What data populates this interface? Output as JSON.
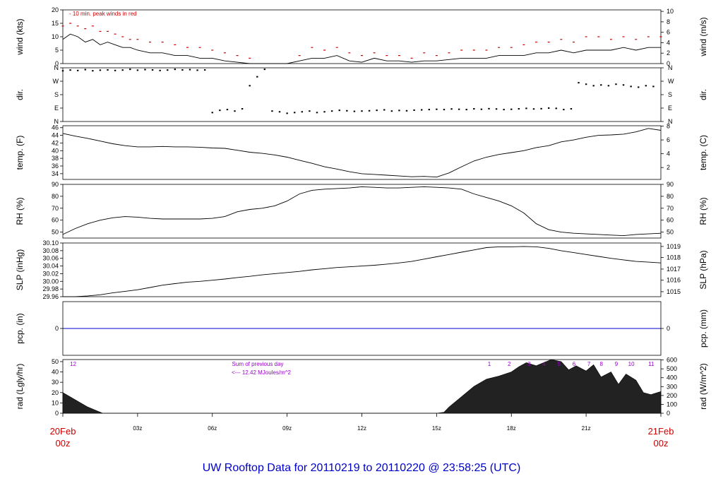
{
  "footer_title": "UW Rooftop Data for 20110219  to  20110220 @ 23:58:25  (UTC)",
  "colors": {
    "frame": "#000000",
    "title": "#0000cc",
    "date": "#cc0000",
    "peak": "#cc0000",
    "pcp_line": "#0000cc",
    "annot": "#9900cc"
  },
  "chart_data": [
    {
      "type": "line",
      "id": "wind",
      "ylabel_left": "wind (kts)",
      "ylabel_right": "wind (m/s)",
      "ylim": [
        0,
        20
      ],
      "yticks_left": [
        0,
        5,
        10,
        15,
        20
      ],
      "right_ticks": [
        {
          "label": "0",
          "v": 0
        },
        {
          "label": "2",
          "v": 3.89
        },
        {
          "label": "4",
          "v": 7.78
        },
        {
          "label": "6",
          "v": 11.66
        },
        {
          "label": "8",
          "v": 15.55
        },
        {
          "label": "10",
          "v": 19.44
        }
      ],
      "annotation": "- 10 min. peak winds in red",
      "x_hours": [
        0,
        0.3,
        0.6,
        0.9,
        1.2,
        1.5,
        1.8,
        2.1,
        2.4,
        2.7,
        3.0,
        3.5,
        4.0,
        4.5,
        5.0,
        5.5,
        6.0,
        6.5,
        7.0,
        7.5,
        8.0,
        8.5,
        9.0,
        9.5,
        10.0,
        10.5,
        11.0,
        11.5,
        12.0,
        12.5,
        13.0,
        13.5,
        14.0,
        14.5,
        15.0,
        15.5,
        16.0,
        16.5,
        17.0,
        17.5,
        18.0,
        18.5,
        19.0,
        19.5,
        20.0,
        20.5,
        21.0,
        21.5,
        22.0,
        22.5,
        23.0,
        23.5,
        24.0
      ],
      "values": [
        9,
        11,
        10,
        8,
        9,
        7,
        8,
        7,
        6,
        6,
        5,
        4,
        4,
        3,
        3,
        2,
        2,
        1,
        0.5,
        0,
        0,
        0,
        0,
        1,
        2,
        2,
        3,
        1,
        0.5,
        2,
        1,
        1,
        0.5,
        1,
        1,
        1.5,
        2,
        2,
        2,
        3,
        3,
        3,
        4,
        4,
        5,
        4,
        5,
        5,
        5,
        6,
        5,
        6,
        6
      ],
      "peaks": [
        14,
        15,
        14,
        13,
        14,
        12,
        12,
        11,
        10,
        9,
        9,
        8,
        8,
        7,
        6,
        6,
        5,
        4,
        3,
        2,
        0,
        0,
        0,
        3,
        6,
        5,
        6,
        4,
        3,
        4,
        3,
        3,
        2,
        4,
        3,
        4,
        5,
        5,
        5,
        6,
        6,
        7,
        8,
        8,
        9,
        8,
        10,
        10,
        9,
        10,
        9,
        10,
        10
      ]
    },
    {
      "type": "scatter",
      "id": "dir",
      "ylabel_left": "dir.",
      "ylabel_right": "dir.",
      "ylim": [
        0,
        360
      ],
      "tick_labels": [
        "N",
        "E",
        "S",
        "W",
        "N"
      ],
      "tick_values": [
        0,
        90,
        180,
        270,
        360
      ],
      "x_hours": [
        0,
        0.3,
        0.6,
        0.9,
        1.2,
        1.5,
        1.8,
        2.1,
        2.4,
        2.7,
        3.0,
        3.3,
        3.6,
        3.9,
        4.2,
        4.5,
        4.8,
        5.1,
        5.4,
        5.7,
        6.0,
        6.3,
        6.6,
        6.9,
        7.2,
        7.5,
        7.8,
        8.1,
        8.4,
        8.7,
        9.0,
        9.3,
        9.6,
        9.9,
        10.2,
        10.5,
        10.8,
        11.1,
        11.4,
        11.7,
        12.0,
        12.3,
        12.6,
        12.9,
        13.2,
        13.5,
        13.8,
        14.1,
        14.4,
        14.7,
        15.0,
        15.3,
        15.6,
        15.9,
        16.2,
        16.5,
        16.8,
        17.1,
        17.4,
        17.7,
        18.0,
        18.3,
        18.6,
        18.9,
        19.2,
        19.5,
        19.8,
        20.1,
        20.4,
        20.7,
        21.0,
        21.3,
        21.6,
        21.9,
        22.2,
        22.5,
        22.8,
        23.1,
        23.4,
        23.7
      ],
      "values": [
        340,
        345,
        342,
        348,
        340,
        344,
        346,
        342,
        345,
        350,
        344,
        348,
        346,
        342,
        345,
        350,
        346,
        348,
        344,
        346,
        60,
        75,
        80,
        70,
        85,
        240,
        300,
        350,
        70,
        65,
        55,
        60,
        65,
        70,
        60,
        65,
        70,
        75,
        72,
        68,
        70,
        72,
        75,
        78,
        70,
        74,
        72,
        76,
        78,
        80,
        82,
        80,
        84,
        82,
        80,
        85,
        82,
        86,
        84,
        80,
        82,
        85,
        88,
        84,
        86,
        90,
        88,
        80,
        85,
        260,
        250,
        240,
        245,
        240,
        250,
        245,
        235,
        230,
        240,
        235
      ]
    },
    {
      "type": "line",
      "id": "temp",
      "ylabel_left": "temp. (F)",
      "ylabel_right": "temp. (C)",
      "ylim": [
        32.5,
        46.5
      ],
      "yticks_left": [
        34,
        36,
        38,
        40,
        42,
        44,
        46
      ],
      "right_ticks": [
        {
          "label": "2",
          "v": 35.6
        },
        {
          "label": "4",
          "v": 39.2
        },
        {
          "label": "6",
          "v": 42.8
        },
        {
          "label": "8",
          "v": 46.4
        }
      ],
      "x_hours": [
        0,
        0.5,
        1.0,
        1.5,
        2.0,
        2.5,
        3.0,
        3.5,
        4.0,
        4.5,
        5.0,
        5.5,
        6.0,
        6.5,
        7.0,
        7.5,
        8.0,
        8.5,
        9.0,
        9.5,
        10.0,
        10.5,
        11.0,
        11.5,
        12.0,
        12.5,
        13.0,
        13.5,
        14.0,
        14.5,
        15.0,
        15.5,
        16.0,
        16.5,
        17.0,
        17.5,
        18.0,
        18.5,
        19.0,
        19.5,
        20.0,
        20.5,
        21.0,
        21.5,
        22.0,
        22.5,
        23.0,
        23.5,
        24.0
      ],
      "values": [
        44.5,
        43.8,
        43.2,
        42.5,
        41.8,
        41.3,
        41.0,
        41.0,
        41.1,
        41.0,
        41.0,
        40.9,
        40.7,
        40.6,
        40.1,
        39.6,
        39.3,
        38.9,
        38.3,
        37.5,
        36.7,
        35.8,
        35.2,
        34.5,
        34.0,
        33.8,
        33.6,
        33.4,
        33.2,
        33.3,
        33.1,
        34.2,
        35.8,
        37.3,
        38.3,
        39.0,
        39.5,
        40.0,
        40.8,
        41.3,
        42.3,
        42.8,
        43.5,
        44.0,
        44.1,
        44.3,
        44.9,
        45.8,
        45.3
      ]
    },
    {
      "type": "line",
      "id": "rh",
      "ylabel_left": "RH (%)",
      "ylabel_right": "RH (%)",
      "ylim": [
        45,
        90
      ],
      "yticks_left": [
        50,
        60,
        70,
        80,
        90
      ],
      "right_ticks": [
        {
          "label": "50",
          "v": 50
        },
        {
          "label": "60",
          "v": 60
        },
        {
          "label": "70",
          "v": 70
        },
        {
          "label": "80",
          "v": 80
        },
        {
          "label": "90",
          "v": 90
        }
      ],
      "x_hours": [
        0,
        0.5,
        1.0,
        1.5,
        2.0,
        2.5,
        3.0,
        3.5,
        4.0,
        4.5,
        5.0,
        5.5,
        6.0,
        6.5,
        7.0,
        7.5,
        8.0,
        8.5,
        9.0,
        9.5,
        10.0,
        10.5,
        11.0,
        11.5,
        12.0,
        12.5,
        13.0,
        13.5,
        14.0,
        14.5,
        15.0,
        15.5,
        16.0,
        16.5,
        17.0,
        17.5,
        18.0,
        18.5,
        19.0,
        19.5,
        20.0,
        20.5,
        21.0,
        21.5,
        22.0,
        22.5,
        23.0,
        23.5,
        24.0
      ],
      "values": [
        48,
        53,
        57,
        60,
        62,
        63,
        62.5,
        61.5,
        61,
        61,
        61,
        61,
        61.5,
        63,
        67,
        69,
        70,
        72,
        76,
        82,
        85,
        86,
        86.5,
        87,
        88,
        87.5,
        87,
        87,
        87.5,
        88,
        87.5,
        87,
        86,
        82,
        79,
        76,
        72,
        66,
        57,
        52,
        50,
        49,
        48.5,
        48,
        47.5,
        47,
        48,
        48.5,
        49
      ]
    },
    {
      "type": "line",
      "id": "slp",
      "ylabel_left": "SLP (inHg)",
      "ylabel_right": "SLP (hPa)",
      "ylim": [
        29.96,
        30.1
      ],
      "yticks_left": [
        29.96,
        29.98,
        30.0,
        30.02,
        30.04,
        30.06,
        30.08,
        30.1
      ],
      "ytick_labels_left": [
        "29.96",
        "29.98",
        "30.00",
        "30.02",
        "30.04",
        "30.06",
        "30.08",
        "30.10"
      ],
      "right_ticks": [
        {
          "label": "1015",
          "v": 29.973
        },
        {
          "label": "1016",
          "v": 30.003
        },
        {
          "label": "1017",
          "v": 30.032
        },
        {
          "label": "1018",
          "v": 30.062
        },
        {
          "label": "1019",
          "v": 30.091
        }
      ],
      "x_hours": [
        0,
        0.5,
        1.0,
        1.5,
        2.0,
        2.5,
        3.0,
        3.5,
        4.0,
        4.5,
        5.0,
        5.5,
        6.0,
        6.5,
        7.0,
        7.5,
        8.0,
        8.5,
        9.0,
        9.5,
        10.0,
        10.5,
        11.0,
        11.5,
        12.0,
        12.5,
        13.0,
        13.5,
        14.0,
        14.5,
        15.0,
        15.5,
        16.0,
        16.5,
        17.0,
        17.5,
        18.0,
        18.5,
        19.0,
        19.5,
        20.0,
        20.5,
        21.0,
        21.5,
        22.0,
        22.5,
        23.0,
        23.5,
        24.0
      ],
      "values": [
        29.96,
        29.96,
        29.962,
        29.965,
        29.97,
        29.974,
        29.978,
        29.984,
        29.99,
        29.994,
        29.998,
        30.0,
        30.003,
        30.006,
        30.01,
        30.013,
        30.017,
        30.02,
        30.023,
        30.026,
        30.03,
        30.033,
        30.036,
        30.038,
        30.04,
        30.042,
        30.045,
        30.048,
        30.052,
        30.058,
        30.064,
        30.07,
        30.076,
        30.082,
        30.088,
        30.09,
        30.09,
        30.091,
        30.09,
        30.086,
        30.08,
        30.075,
        30.07,
        30.065,
        30.06,
        30.056,
        30.052,
        30.05,
        30.048
      ]
    },
    {
      "type": "line",
      "id": "pcp",
      "ylabel_left": "pcp. (in)",
      "ylabel_right": "pcp. (mm)",
      "ylim": [
        -1,
        1
      ],
      "yticks_left": [
        0
      ],
      "right_ticks": [
        {
          "label": "0",
          "v": 0
        }
      ],
      "x_hours": [
        0,
        24
      ],
      "values": [
        0,
        0
      ]
    },
    {
      "type": "area",
      "id": "rad",
      "ylabel_left": "rad (Lgly/hr)",
      "ylabel_right": "rad (W/m^2)",
      "ylim": [
        0,
        52
      ],
      "yticks_left": [
        0,
        10,
        20,
        30,
        40,
        50
      ],
      "right_ticks": [
        {
          "label": "0",
          "v": 0
        },
        {
          "label": "100",
          "v": 8.6
        },
        {
          "label": "200",
          "v": 17.2
        },
        {
          "label": "300",
          "v": 25.8
        },
        {
          "label": "400",
          "v": 34.4
        },
        {
          "label": "500",
          "v": 43.0
        },
        {
          "label": "600",
          "v": 51.6
        }
      ],
      "annotations": [
        "Sum of previous day",
        "<--- 12.42 MJoules/m^2"
      ],
      "hour_markers": [
        {
          "label": "12",
          "hour": 0.3
        },
        {
          "label": "1",
          "hour": 17.0
        },
        {
          "label": "2",
          "hour": 17.8
        },
        {
          "label": "3",
          "hour": 18.6
        },
        {
          "label": "4",
          "hour": 19.2
        },
        {
          "label": "5",
          "hour": 19.8
        },
        {
          "label": "6",
          "hour": 20.4
        },
        {
          "label": "7",
          "hour": 21.0
        },
        {
          "label": "8",
          "hour": 21.5
        },
        {
          "label": "9",
          "hour": 22.1
        },
        {
          "label": "10",
          "hour": 22.7
        },
        {
          "label": "11",
          "hour": 23.5
        }
      ],
      "x_hours": [
        0,
        0.5,
        1.0,
        1.5,
        1.6,
        2.0,
        15.0,
        15.3,
        15.5,
        16.0,
        16.5,
        17.0,
        17.5,
        18.0,
        18.3,
        18.6,
        19.0,
        19.3,
        19.6,
        20.0,
        20.3,
        20.6,
        21.0,
        21.3,
        21.6,
        22.0,
        22.3,
        22.6,
        23.0,
        23.3,
        23.6,
        24.0
      ],
      "values": [
        20,
        13,
        6,
        1,
        0,
        0,
        0,
        1,
        6,
        16,
        26,
        33,
        36,
        40,
        45,
        49,
        46,
        49,
        52,
        50,
        42,
        46,
        41,
        47,
        35,
        40,
        28,
        38,
        32,
        20,
        18,
        21
      ]
    }
  ],
  "x_axis": {
    "ticks": [
      {
        "label": "20Feb",
        "label2": "00z",
        "hour": 0,
        "red": true
      },
      {
        "label": "03z",
        "hour": 3
      },
      {
        "label": "06z",
        "hour": 6
      },
      {
        "label": "09z",
        "hour": 9
      },
      {
        "label": "12z",
        "hour": 12
      },
      {
        "label": "15z",
        "hour": 15
      },
      {
        "label": "18z",
        "hour": 18
      },
      {
        "label": "21z",
        "hour": 21
      },
      {
        "label": "21Feb",
        "label2": "00z",
        "hour": 24,
        "red": true
      }
    ]
  }
}
